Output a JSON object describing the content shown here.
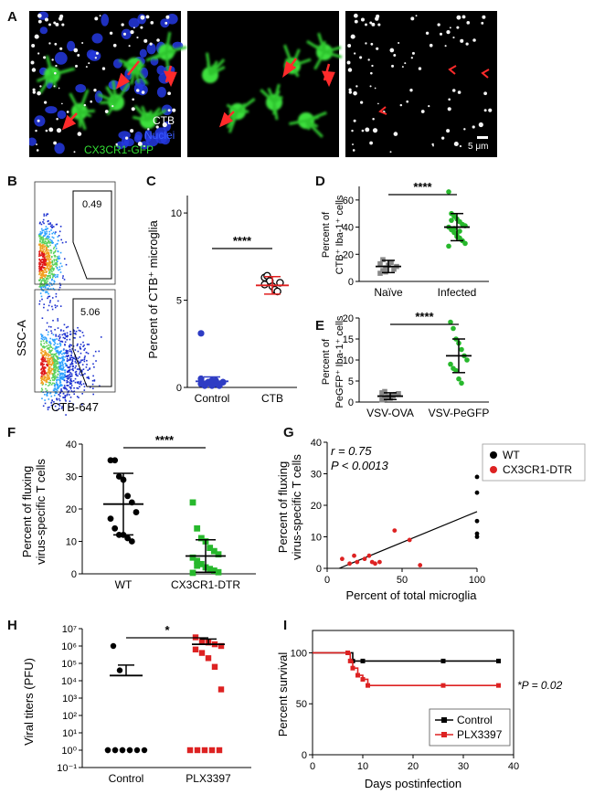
{
  "panel_letters": [
    "A",
    "B",
    "C",
    "D",
    "E",
    "F",
    "G",
    "H",
    "I"
  ],
  "panelA": {
    "legend": [
      {
        "text": "CTB",
        "color": "#ffffff"
      },
      {
        "text": "Nuclei",
        "color": "#3a5cff"
      },
      {
        "text": "CX3CR1-GFP",
        "color": "#33dd33"
      }
    ],
    "scalebar": "5 μm"
  },
  "panelB": {
    "ylabel": "SSC-A",
    "xlabel": "CTB-647",
    "gates": [
      "0.49",
      "5.06"
    ]
  },
  "chart_data": [
    {
      "id": "C",
      "type": "scatter",
      "categories": [
        "Control",
        "CTB"
      ],
      "ylabel": "Percent of CTB⁺ microglia",
      "yticks": [
        "0",
        "5",
        "10"
      ],
      "ylim": [
        0,
        11
      ],
      "series": [
        {
          "values": [
            0.2,
            0.1,
            0.3,
            0.4,
            0.2,
            0.1,
            0.3,
            0.5,
            0.2,
            0.3,
            0.1,
            0.4,
            0.2,
            0.3,
            3.1
          ]
        },
        {
          "values": [
            6.3,
            6.4,
            6.1,
            5.8,
            5.6,
            5.5,
            6.0,
            5.9
          ]
        }
      ],
      "mean_sd": [
        [
          0.35,
          0.25
        ],
        [
          5.85,
          0.5
        ]
      ],
      "sig": "****",
      "colors": [
        "#2e3cc4",
        "#ffffff"
      ]
    },
    {
      "id": "D",
      "type": "scatter",
      "categories": [
        "Naïve",
        "Infected"
      ],
      "ylabel": "Percent of",
      "ylabel2": "CTB⁺ Iba-1⁺ cells",
      "yticks": [
        "0",
        "20",
        "40",
        "60"
      ],
      "ylim": [
        0,
        70
      ],
      "series": [
        {
          "values": [
            6,
            8,
            10,
            12,
            14,
            9,
            11,
            13,
            16,
            7
          ]
        },
        {
          "values": [
            66,
            50,
            48,
            46,
            44,
            42,
            41,
            40,
            38,
            36,
            34,
            32,
            30,
            28,
            26,
            45,
            39,
            33,
            37
          ]
        }
      ],
      "mean_sd": [
        [
          11,
          4.5
        ],
        [
          40,
          10
        ]
      ],
      "sig": "****",
      "colors": [
        "#888888",
        "#27b82c"
      ]
    },
    {
      "id": "E",
      "type": "scatter",
      "categories": [
        "VSV-OVA",
        "VSV-PeGFP"
      ],
      "ylabel": "Percent of",
      "ylabel2": "PeGFP⁺ Iba-1⁺ cells",
      "yticks": [
        "0",
        "5",
        "10",
        "15",
        "20"
      ],
      "ylim": [
        0,
        20
      ],
      "series": [
        {
          "values": [
            0.5,
            0.8,
            1.0,
            1.2,
            1.5,
            1.8,
            2.0,
            2.2,
            2.5,
            1.3,
            0.9,
            1.6
          ]
        },
        {
          "values": [
            19,
            17.5,
            15,
            14,
            12.5,
            11,
            10,
            9,
            8,
            7.5,
            5.5,
            4.5
          ]
        }
      ],
      "mean_sd": [
        [
          1.4,
          0.8
        ],
        [
          11,
          4
        ]
      ],
      "sig": "****",
      "colors": [
        "#888888",
        "#27b82c"
      ]
    },
    {
      "id": "F",
      "type": "scatter",
      "categories": [
        "WT",
        "CX3CR1-DTR"
      ],
      "ylabel": "Percent of fluxing",
      "ylabel2": "virus-specific T cells",
      "yticks": [
        "0",
        "10",
        "20",
        "30",
        "40"
      ],
      "ylim": [
        0,
        40
      ],
      "series": [
        {
          "values": [
            35,
            35,
            30,
            29,
            24,
            22,
            19,
            17,
            14,
            12,
            12,
            11,
            10
          ]
        },
        {
          "values": [
            22,
            14,
            11,
            10,
            8,
            7,
            6,
            5,
            4,
            3,
            2,
            1.5,
            1,
            0.5,
            0.3,
            2.5
          ]
        }
      ],
      "mean_sd": [
        [
          21.5,
          9.5
        ],
        [
          5.5,
          5
        ]
      ],
      "sig": "****",
      "colors": [
        "#000000",
        "#27b82c"
      ]
    },
    {
      "id": "G",
      "type": "scatter",
      "xlabel": "Percent of total microglia",
      "ylabel": "Percent of fluxing",
      "ylabel2": "virus-specific T cells",
      "xticks": [
        "0",
        "50",
        "100"
      ],
      "xlim": [
        0,
        100
      ],
      "yticks": [
        "0",
        "10",
        "20",
        "30",
        "40"
      ],
      "ylim": [
        0,
        40
      ],
      "stats": [
        "r = 0.75",
        "P < 0.0013"
      ],
      "legend": [
        "WT",
        "CX3CR1-DTR"
      ],
      "series": [
        {
          "name": "WT",
          "color": "#000000",
          "points": [
            [
              100,
              29
            ],
            [
              100,
              24
            ],
            [
              100,
              15
            ],
            [
              100,
              11
            ],
            [
              100,
              10
            ]
          ]
        },
        {
          "name": "CX3CR1-DTR",
          "color": "#dd2222",
          "points": [
            [
              10,
              3
            ],
            [
              15,
              1.5
            ],
            [
              20,
              2
            ],
            [
              25,
              3
            ],
            [
              28,
              4
            ],
            [
              30,
              2
            ],
            [
              32,
              1.5
            ],
            [
              35,
              2
            ],
            [
              45,
              12
            ],
            [
              55,
              9
            ],
            [
              62,
              1
            ],
            [
              18,
              4
            ]
          ]
        }
      ],
      "fit": [
        [
          8,
          0
        ],
        [
          100,
          18
        ]
      ]
    },
    {
      "id": "H",
      "type": "scatter",
      "categories": [
        "Control",
        "PLX3397"
      ],
      "ylabel": "Viral titers (PFU)",
      "yticks": [
        "10⁻¹",
        "10⁰",
        "10¹",
        "10²",
        "10³",
        "10⁴",
        "10⁵",
        "10⁶",
        "10⁷"
      ],
      "log_range": [
        -1,
        7
      ],
      "series": [
        {
          "logvalues": [
            6,
            4.6,
            0,
            0,
            0,
            0,
            0,
            0,
            0,
            0,
            0,
            0
          ]
        },
        {
          "logvalues": [
            6.5,
            6.3,
            6.2,
            6.1,
            6.0,
            5.8,
            5.6,
            5.3,
            4.8,
            3.5,
            0,
            0,
            0,
            0,
            0
          ]
        }
      ],
      "mean_log": [
        [
          4.3,
          4.9
        ],
        [
          6.1,
          6.4
        ]
      ],
      "sig": "*",
      "colors": [
        "#000000",
        "#dd2222"
      ]
    },
    {
      "id": "I",
      "type": "line",
      "xlabel": "Days postinfection",
      "ylabel": "Percent survival",
      "xticks": [
        "0",
        "10",
        "20",
        "30",
        "40"
      ],
      "xlim": [
        0,
        40
      ],
      "yticks": [
        "0",
        "50",
        "100"
      ],
      "ylim": [
        0,
        100
      ],
      "annotation": "*P = 0.02",
      "series": [
        {
          "name": "Control",
          "color": "#000000",
          "steps": [
            [
              0,
              100
            ],
            [
              7,
              100
            ],
            [
              8,
              92
            ],
            [
              37,
              92
            ]
          ],
          "marks": [
            [
              7,
              100
            ],
            [
              8,
              92
            ],
            [
              10,
              92
            ],
            [
              26,
              92
            ],
            [
              37,
              92
            ]
          ]
        },
        {
          "name": "PLX3397",
          "color": "#dd2222",
          "steps": [
            [
              0,
              100
            ],
            [
              7,
              100
            ],
            [
              7.5,
              92
            ],
            [
              8,
              85
            ],
            [
              9,
              78
            ],
            [
              10,
              74
            ],
            [
              11,
              68
            ],
            [
              37,
              68
            ]
          ],
          "marks": [
            [
              7,
              100
            ],
            [
              7.5,
              92
            ],
            [
              8,
              85
            ],
            [
              9,
              78
            ],
            [
              10,
              74
            ],
            [
              11,
              68
            ],
            [
              26,
              68
            ],
            [
              37,
              68
            ]
          ]
        }
      ]
    }
  ]
}
